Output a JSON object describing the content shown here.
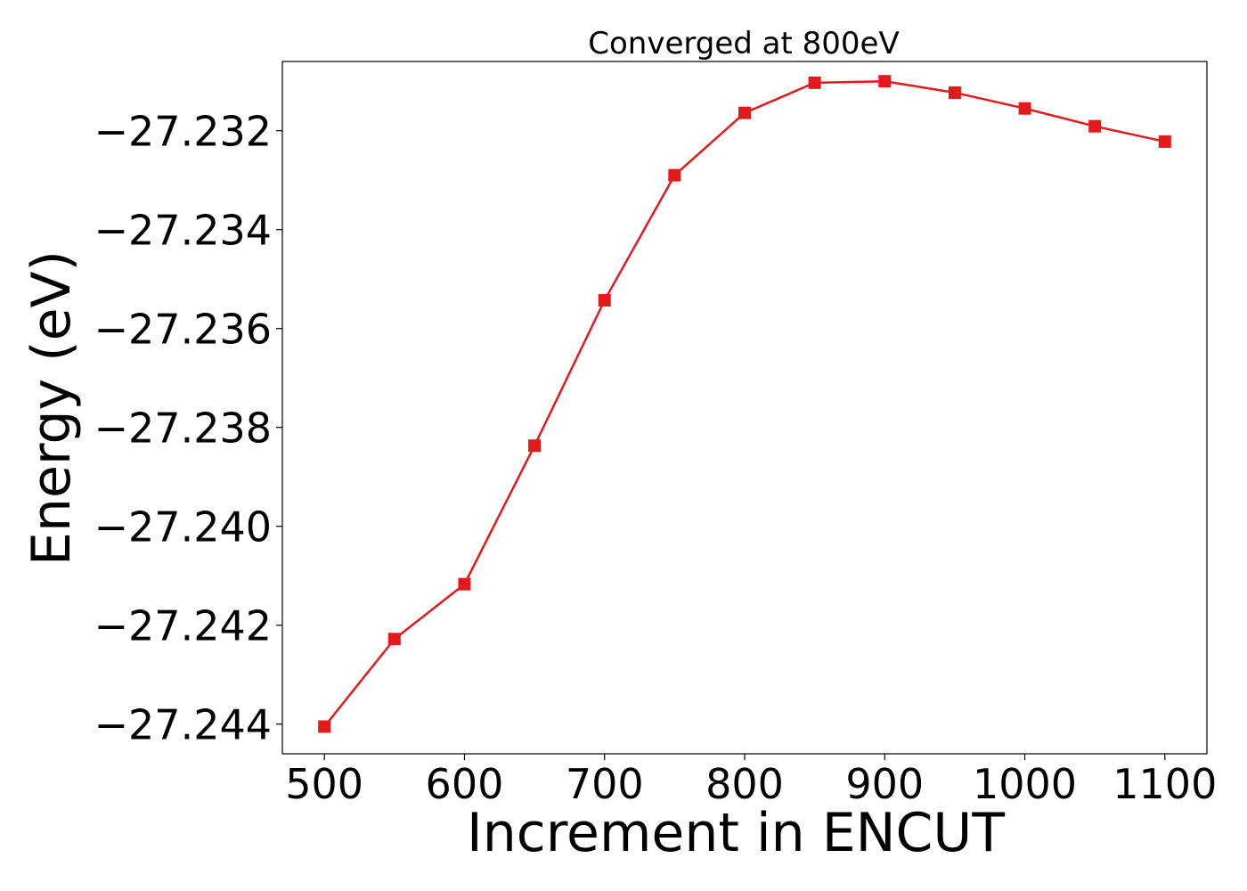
{
  "chart_data": {
    "type": "line",
    "title": "Converged at 800eV",
    "xlabel": "Increment in ENCUT",
    "ylabel": "Energy (eV)",
    "xlim": [
      470,
      1130
    ],
    "ylim": [
      -27.2446,
      -27.2306
    ],
    "x_ticks": [
      500,
      600,
      700,
      800,
      900,
      1000,
      1100
    ],
    "x_tick_labels": [
      "500",
      "600",
      "700",
      "800",
      "900",
      "1000",
      "1100"
    ],
    "y_ticks": [
      -27.232,
      -27.234,
      -27.236,
      -27.238,
      -27.24,
      -27.242,
      -27.244
    ],
    "y_tick_labels": [
      "−27.232",
      "−27.234",
      "−27.236",
      "−27.238",
      "−27.240",
      "−27.242",
      "−27.244"
    ],
    "grid": false,
    "color": "#e31a1c",
    "marker": "square",
    "x": [
      500,
      550,
      600,
      650,
      700,
      750,
      800,
      850,
      900,
      950,
      1000,
      1050,
      1100
    ],
    "y": [
      -27.24405,
      -27.24228,
      -27.24117,
      -27.23837,
      -27.23543,
      -27.2329,
      -27.23164,
      -27.23103,
      -27.231,
      -27.23123,
      -27.23155,
      -27.23191,
      -27.23222
    ]
  }
}
